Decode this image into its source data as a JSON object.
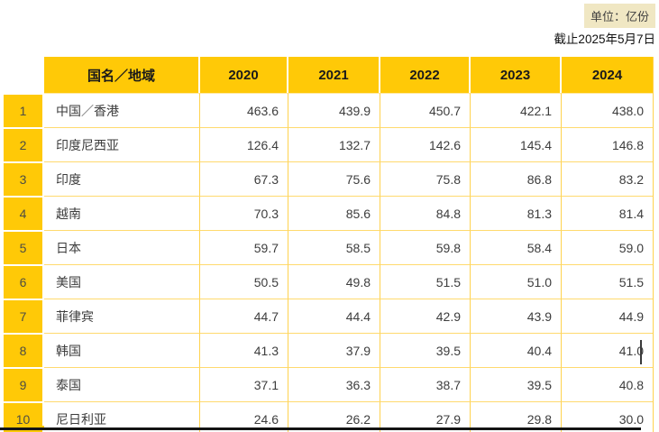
{
  "meta": {
    "unit_label": "单位：亿份",
    "as_of_label": "截止2025年5月7日"
  },
  "colors": {
    "header_gold": "#FFC907",
    "grid_line": "#FFD24E",
    "unit_badge_bg": "#F0E7C3",
    "value_text": "#3D3D3D",
    "bottom_rule": "#141414"
  },
  "chart_data": {
    "type": "table",
    "unit": "单位：亿份",
    "as_of": "截止2025年5月7日",
    "columns": [
      "国名／地域",
      "2020",
      "2021",
      "2022",
      "2023",
      "2024"
    ],
    "rows": [
      {
        "no": "1",
        "name": "中国／香港",
        "values": [
          "463.6",
          "439.9",
          "450.7",
          "422.1",
          "438.0"
        ]
      },
      {
        "no": "2",
        "name": "印度尼西亚",
        "values": [
          "126.4",
          "132.7",
          "142.6",
          "145.4",
          "146.8"
        ]
      },
      {
        "no": "3",
        "name": "印度",
        "values": [
          "67.3",
          "75.6",
          "75.8",
          "86.8",
          "83.2"
        ]
      },
      {
        "no": "4",
        "name": "越南",
        "values": [
          "70.3",
          "85.6",
          "84.8",
          "81.3",
          "81.4"
        ]
      },
      {
        "no": "5",
        "name": "日本",
        "values": [
          "59.7",
          "58.5",
          "59.8",
          "58.4",
          "59.0"
        ]
      },
      {
        "no": "6",
        "name": "美国",
        "values": [
          "50.5",
          "49.8",
          "51.5",
          "51.0",
          "51.5"
        ]
      },
      {
        "no": "7",
        "name": "菲律宾",
        "values": [
          "44.7",
          "44.4",
          "42.9",
          "43.9",
          "44.9"
        ]
      },
      {
        "no": "8",
        "name": "韩国",
        "values": [
          "41.3",
          "37.9",
          "39.5",
          "40.4",
          "41.0"
        ]
      },
      {
        "no": "9",
        "name": "泰国",
        "values": [
          "37.1",
          "36.3",
          "38.7",
          "39.5",
          "40.8"
        ]
      },
      {
        "no": "10",
        "name": "尼日利亚",
        "values": [
          "24.6",
          "26.2",
          "27.9",
          "29.8",
          "30.0"
        ]
      }
    ]
  }
}
